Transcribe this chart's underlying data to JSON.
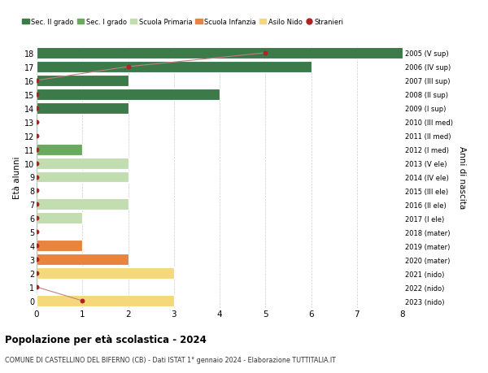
{
  "ages": [
    18,
    17,
    16,
    15,
    14,
    13,
    12,
    11,
    10,
    9,
    8,
    7,
    6,
    5,
    4,
    3,
    2,
    1,
    0
  ],
  "right_labels": [
    "2005 (V sup)",
    "2006 (IV sup)",
    "2007 (III sup)",
    "2008 (II sup)",
    "2009 (I sup)",
    "2010 (III med)",
    "2011 (II med)",
    "2012 (I med)",
    "2013 (V ele)",
    "2014 (IV ele)",
    "2015 (III ele)",
    "2016 (II ele)",
    "2017 (I ele)",
    "2018 (mater)",
    "2019 (mater)",
    "2020 (mater)",
    "2021 (nido)",
    "2022 (nido)",
    "2023 (nido)"
  ],
  "bar_values": [
    8,
    6,
    2,
    4,
    2,
    0,
    0,
    1,
    2,
    2,
    0,
    2,
    1,
    0,
    1,
    2,
    3,
    0,
    3
  ],
  "bar_colors": [
    "#3d7a4a",
    "#3d7a4a",
    "#3d7a4a",
    "#3d7a4a",
    "#3d7a4a",
    "#6aaa5e",
    "#6aaa5e",
    "#6aaa5e",
    "#c2ddb0",
    "#c2ddb0",
    "#c2ddb0",
    "#c2ddb0",
    "#c2ddb0",
    "#e8843e",
    "#e8843e",
    "#e8843e",
    "#f5d87a",
    "#f5d87a",
    "#f5d87a"
  ],
  "stranieri_values": [
    5,
    2,
    0,
    0,
    0,
    0,
    0,
    0,
    0,
    0,
    0,
    0,
    0,
    0,
    0,
    0,
    0,
    0,
    1
  ],
  "stranieri_color": "#b22222",
  "stranieri_line_color": "#c08080",
  "legend_labels": [
    "Sec. II grado",
    "Sec. I grado",
    "Scuola Primaria",
    "Scuola Infanzia",
    "Asilo Nido",
    "Stranieri"
  ],
  "legend_colors": [
    "#3d7a4a",
    "#6aaa5e",
    "#c2ddb0",
    "#e8843e",
    "#f5d87a",
    "#b22222"
  ],
  "ylabel_left": "Età alunni",
  "ylabel_right": "Anni di nascita",
  "xlim": [
    0,
    8
  ],
  "title": "Popolazione per età scolastica - 2024",
  "subtitle": "COMUNE DI CASTELLINO DEL BIFERNO (CB) - Dati ISTAT 1° gennaio 2024 - Elaborazione TUTTITALIA.IT",
  "bg_color": "#ffffff",
  "grid_color": "#cccccc",
  "bar_edge_color": "#ffffff"
}
